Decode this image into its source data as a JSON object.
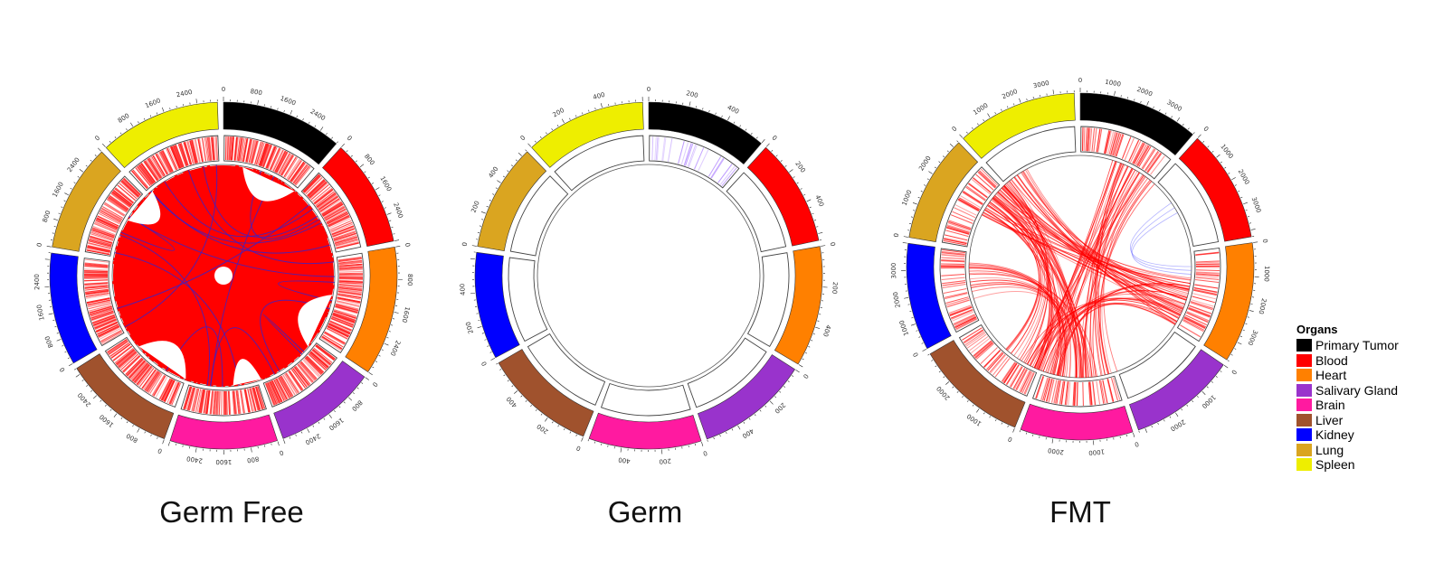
{
  "legend": {
    "title": "Organs",
    "items": [
      {
        "name": "Primary Tumor",
        "color": "#000000"
      },
      {
        "name": "Blood",
        "color": "#ff0000"
      },
      {
        "name": "Heart",
        "color": "#ff8000"
      },
      {
        "name": "Salivary Gland",
        "color": "#9933cc"
      },
      {
        "name": "Brain",
        "color": "#ff1aa0"
      },
      {
        "name": "Liver",
        "color": "#a0522d"
      },
      {
        "name": "Kidney",
        "color": "#0000ff"
      },
      {
        "name": "Lung",
        "color": "#daa520"
      },
      {
        "name": "Spleen",
        "color": "#eeee00"
      }
    ]
  },
  "panels": [
    {
      "label": "Germ Free",
      "sectors": [
        {
          "organ": "Primary Tumor",
          "span": 45,
          "ticks": [
            "0",
            "800",
            "1600",
            "2400"
          ]
        },
        {
          "organ": "Blood",
          "span": 40,
          "ticks": [
            "0",
            "800",
            "1600",
            "2400"
          ]
        },
        {
          "organ": "Heart",
          "span": 48,
          "ticks": [
            "0",
            "800",
            "1600",
            "2400"
          ]
        },
        {
          "organ": "Salivary Gland",
          "span": 38,
          "ticks": [
            "0",
            "800",
            "1600",
            "2400"
          ]
        },
        {
          "organ": "Brain",
          "span": 40,
          "ticks": [
            "0",
            "800",
            "1600",
            "2400"
          ]
        },
        {
          "organ": "Liver",
          "span": 42,
          "ticks": [
            "0",
            "800",
            "1600",
            "2400"
          ]
        },
        {
          "organ": "Kidney",
          "span": 42,
          "ticks": [
            "0",
            "800",
            "1600",
            "2400"
          ]
        },
        {
          "organ": "Lung",
          "span": 40,
          "ticks": [
            "0",
            "800",
            "1600",
            "2400"
          ]
        },
        {
          "organ": "Spleen",
          "span": 45,
          "ticks": [
            "0",
            "800",
            "1600",
            "2400"
          ]
        }
      ],
      "density": "dense",
      "link_color": "#ff0000"
    },
    {
      "label": "Germ",
      "sectors": [
        {
          "organ": "Primary Tumor",
          "span": 45,
          "ticks": [
            "0",
            "200",
            "400"
          ]
        },
        {
          "organ": "Blood",
          "span": 40,
          "ticks": [
            "0",
            "200",
            "400"
          ]
        },
        {
          "organ": "Heart",
          "span": 45,
          "ticks": [
            "0",
            "200",
            "400"
          ]
        },
        {
          "organ": "Salivary Gland",
          "span": 42,
          "ticks": [
            "0",
            "200",
            "400"
          ]
        },
        {
          "organ": "Brain",
          "span": 42,
          "ticks": [
            "0",
            "200",
            "400"
          ]
        },
        {
          "organ": "Liver",
          "span": 42,
          "ticks": [
            "0",
            "200",
            "400"
          ]
        },
        {
          "organ": "Kidney",
          "span": 40,
          "ticks": [
            "0",
            "200",
            "400"
          ]
        },
        {
          "organ": "Lung",
          "span": 40,
          "ticks": [
            "0",
            "200",
            "400"
          ]
        },
        {
          "organ": "Spleen",
          "span": 45,
          "ticks": [
            "0",
            "200",
            "400"
          ]
        }
      ],
      "density": "none",
      "link_color": "#cc99ff"
    },
    {
      "label": "FMT",
      "sectors": [
        {
          "organ": "Primary Tumor",
          "span": 45,
          "ticks": [
            "0",
            "1000",
            "2000",
            "3000"
          ]
        },
        {
          "organ": "Blood",
          "span": 42,
          "ticks": [
            "0",
            "1000",
            "2000",
            "3000"
          ]
        },
        {
          "organ": "Heart",
          "span": 45,
          "ticks": [
            "0",
            "1000",
            "2000",
            "3000"
          ]
        },
        {
          "organ": "Salivary Gland",
          "span": 40,
          "ticks": [
            "0",
            "1000",
            "2000"
          ]
        },
        {
          "organ": "Brain",
          "span": 42,
          "ticks": [
            "0",
            "1000",
            "2000"
          ]
        },
        {
          "organ": "Liver",
          "span": 42,
          "ticks": [
            "0",
            "1000",
            "2000"
          ]
        },
        {
          "organ": "Kidney",
          "span": 40,
          "ticks": [
            "0",
            "1000",
            "2000",
            "3000"
          ]
        },
        {
          "organ": "Lung",
          "span": 40,
          "ticks": [
            "0",
            "1000",
            "2000"
          ]
        },
        {
          "organ": "Spleen",
          "span": 45,
          "ticks": [
            "0",
            "1000",
            "2000",
            "3000"
          ]
        }
      ],
      "density": "medium",
      "link_color": "#ff0000"
    }
  ]
}
